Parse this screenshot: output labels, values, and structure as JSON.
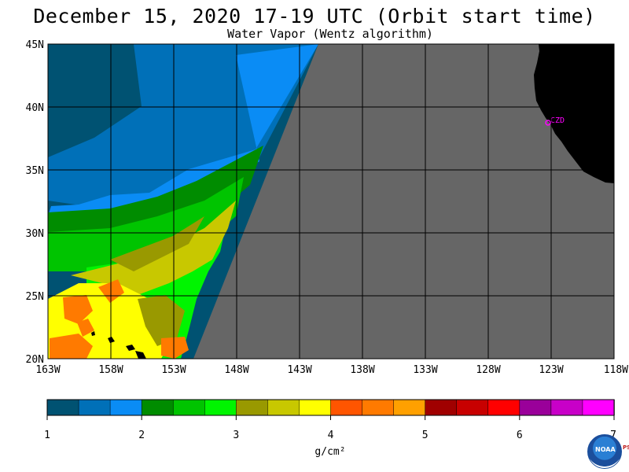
{
  "title": "December 15, 2020  17-19 UTC  (Orbit start time)",
  "subtitle": "Water Vapor (Wentz algorithm)",
  "map": {
    "lat_labels": [
      "45N",
      "40N",
      "35N",
      "30N",
      "25N",
      "20N"
    ],
    "lon_labels": [
      "163W",
      "158W",
      "153W",
      "148W",
      "143W",
      "138W",
      "133W",
      "128W",
      "123W",
      "118W"
    ],
    "station_label": "CZD",
    "colors": {
      "nodata": "#666666",
      "land": "#000000",
      "grid": "#000000",
      "station": "#ff00ff"
    }
  },
  "colorbar": {
    "ticks": [
      "1",
      "2",
      "3",
      "4",
      "5",
      "6",
      "7"
    ],
    "unit": "g/cm²",
    "colors": [
      "#005272",
      "#0070b8",
      "#0a8cf5",
      "#008c00",
      "#00c400",
      "#00f500",
      "#999900",
      "#c8c800",
      "#ffff00",
      "#ff5500",
      "#ff7a00",
      "#ffa000",
      "#a00000",
      "#c80000",
      "#ff0000",
      "#9a009a",
      "#c800c8",
      "#ff00ff"
    ]
  },
  "logo": {
    "text": "NOAA",
    "psl": "PSL"
  }
}
